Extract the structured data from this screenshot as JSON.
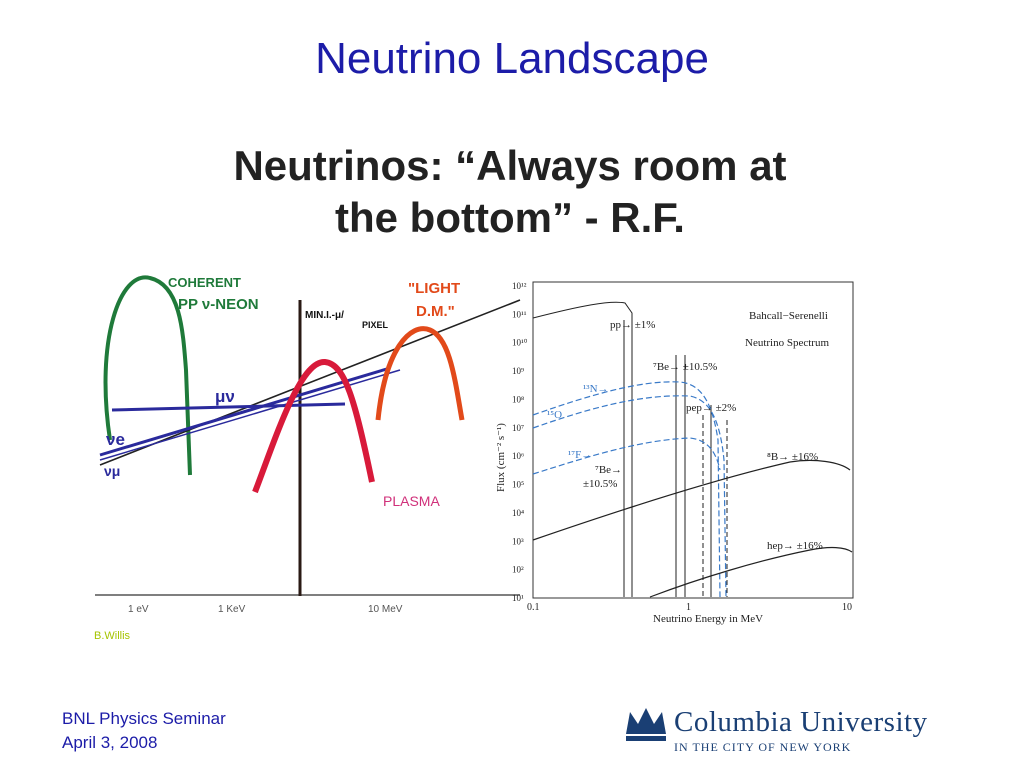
{
  "slide": {
    "title": "Neutrino Landscape",
    "subtitle_line1": "Neutrinos:  “Always room at",
    "subtitle_line2": "the bottom” - R.F.",
    "credit": "B.Willis",
    "footer_line1": "BNL Physics Seminar",
    "footer_line2": "April 3, 2008"
  },
  "sketch": {
    "coherent_label_1": "COHERENT",
    "coherent_label_2": "PP ν-NEON",
    "mini_label_1": "MIN.I.-μ/",
    "mini_label_2": "PIXEL",
    "light_dm_label_1": "\"LIGHT",
    "light_dm_label_2": "D.M.\"",
    "mu_label": "μν",
    "ve_label": "νe",
    "vmu_label": "νμ",
    "plasma_label": "PLASMA",
    "axis_tick_1": "1 eV",
    "axis_tick_2": "1 KeV",
    "axis_tick_3": "10 MeV",
    "colors": {
      "coherent": "#1f7a3a",
      "mu": "#2a2a9c",
      "minimum": "#d81a3a",
      "light_dm": "#e24a1a",
      "plasma": "#d0307a",
      "ink": "#111111"
    }
  },
  "spectrum": {
    "title_line1": "Bahcall−Serenelli",
    "title_line2": "Neutrino Spectrum",
    "y_axis_label": "Flux (cm⁻² s⁻¹)",
    "x_axis_label": "Neutrino Energy in MeV",
    "y_ticks": [
      "10¹²",
      "10¹¹",
      "10¹⁰",
      "10⁹",
      "10⁸",
      "10⁷",
      "10⁶",
      "10⁵",
      "10⁴",
      "10³",
      "10²",
      "10¹"
    ],
    "x_ticks": [
      "0.1",
      "1",
      "10"
    ],
    "labels": {
      "pp": "pp→ ±1%",
      "be7_top": "⁷Be→ ±10.5%",
      "n13": "¹³N→",
      "o15": "¹⁵O",
      "pep": "pep→ ±2%",
      "f17": "¹⁷F→",
      "be7_low_1": "⁷Be→",
      "be7_low_2": "±10.5%",
      "b8": "⁸B→ ±16%",
      "hep": "hep→ ±16%"
    }
  },
  "logo": {
    "name": "Columbia University",
    "sub": "IN THE CITY OF NEW YORK"
  }
}
